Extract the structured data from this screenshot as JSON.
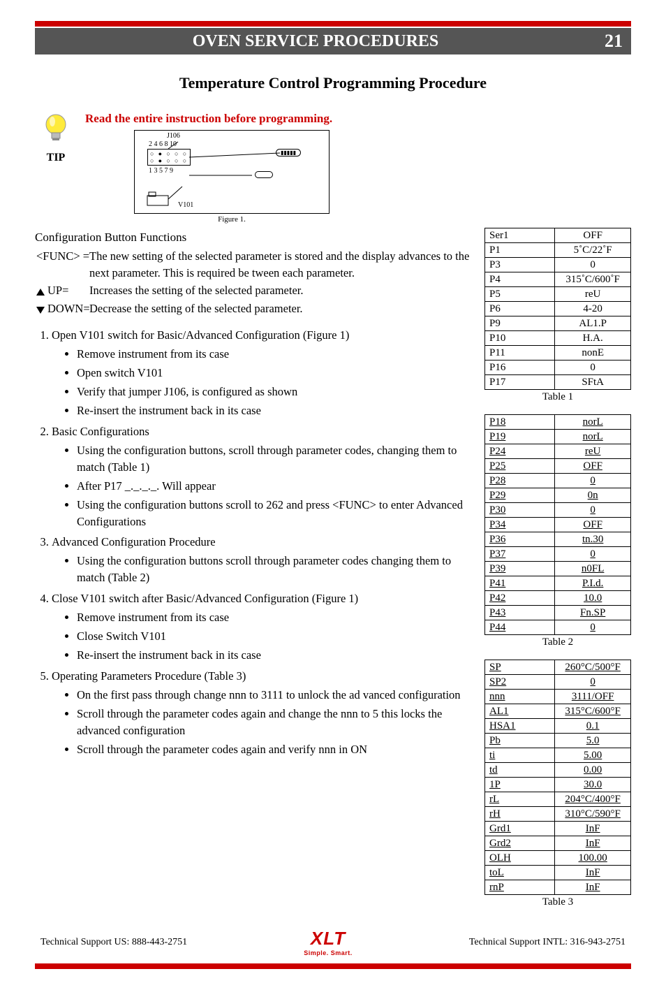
{
  "header": {
    "title": "OVEN SERVICE PROCEDURES",
    "page": "21"
  },
  "subtitle": "Temperature Control Programming Procedure",
  "tip": {
    "label": "TIP",
    "warning": "Read the entire instruction before programming."
  },
  "figure": {
    "j106": "J106",
    "top_nums": "2 4 6 8 10",
    "bot_nums": "1 3 5 7 9",
    "v101": "V101",
    "caption": "Figure 1."
  },
  "cfg": {
    "title": "Configuration Button Functions",
    "func_label": "<FUNC> =",
    "func_body": "The new setting of the selected parameter is stored and the display advances to the next parameter. This is required be tween each parameter.",
    "up_label": "UP=",
    "up_body": "Increases the setting of the selected parameter.",
    "down_label": "DOWN=",
    "down_body": "Decrease the setting of the selected parameter."
  },
  "steps": {
    "s1": "Open V101 switch for Basic/Advanced Configuration (Figure 1)",
    "s1a": "Remove instrument from its case",
    "s1b": "Open switch V101",
    "s1c": "Verify that jumper J106, is configured as shown",
    "s1d": "Re-insert the instrument back in its case",
    "s2": "Basic Configurations",
    "s2a": "Using the configuration buttons, scroll through parameter codes, changing them to match (Table 1)",
    "s2b": "After P17 _._._._. Will appear",
    "s2c": "Using the configuration buttons scroll to 262 and press <FUNC> to enter Advanced Configurations",
    "s3": "Advanced Configuration Procedure",
    "s3a": "Using the configuration buttons scroll through parameter codes changing them to match  (Table 2)",
    "s4": "Close V101 switch after Basic/Advanced Configuration (Figure 1)",
    "s4a": "Remove instrument from its case",
    "s4b": "Close Switch V101",
    "s4c": "Re-insert the instrument back in its case",
    "s5": "Operating Parameters Procedure (Table 3)",
    "s5a": "On the first pass through change nnn to 3111 to unlock the ad vanced configuration",
    "s5b": "Scroll through the parameter codes again and change the nnn to 5 this locks the advanced configuration",
    "s5c": "Scroll through the parameter codes again and verify nnn in ON"
  },
  "table1": {
    "caption": "Table 1",
    "rows": [
      [
        "Ser1",
        "OFF"
      ],
      [
        "P1",
        "5˚C/22˚F"
      ],
      [
        "P3",
        "0"
      ],
      [
        "P4",
        "315˚C/600˚F"
      ],
      [
        "P5",
        "reU"
      ],
      [
        "P6",
        "4-20"
      ],
      [
        "P9",
        "AL1.P"
      ],
      [
        "P10",
        "H.A."
      ],
      [
        "P11",
        "nonE"
      ],
      [
        "P16",
        "0"
      ],
      [
        "P17",
        "SFtA"
      ]
    ]
  },
  "table2": {
    "caption": "Table 2",
    "rows": [
      [
        "P18",
        "norL"
      ],
      [
        "P19",
        "norL"
      ],
      [
        "P24",
        "reU"
      ],
      [
        "P25",
        "OFF"
      ],
      [
        "P28",
        "0"
      ],
      [
        "P29",
        "0n"
      ],
      [
        "P30",
        "0"
      ],
      [
        "P34",
        "OFF"
      ],
      [
        "P36",
        "tn.30"
      ],
      [
        "P37",
        "0"
      ],
      [
        "P39",
        "n0FL"
      ],
      [
        "P41",
        "P.I.d."
      ],
      [
        "P42",
        "10.0"
      ],
      [
        "P43",
        "Fn.SP"
      ],
      [
        "P44",
        "0"
      ]
    ]
  },
  "table3": {
    "caption": "Table 3",
    "rows": [
      [
        "SP",
        "260°C/500°F"
      ],
      [
        "SP2",
        "0"
      ],
      [
        "nnn",
        "3111/OFF"
      ],
      [
        "AL1",
        "315°C/600°F"
      ],
      [
        "HSA1",
        "0.1"
      ],
      [
        "Pb",
        "5.0"
      ],
      [
        "ti",
        "5.00"
      ],
      [
        "td",
        "0.00"
      ],
      [
        "1P",
        "30.0"
      ],
      [
        "rL",
        "204°C/400°F"
      ],
      [
        "rH",
        "310°C/590°F"
      ],
      [
        "Grd1",
        "InF"
      ],
      [
        "Grd2",
        "InF"
      ],
      [
        "OLH",
        "100.00"
      ],
      [
        "toL",
        "InF"
      ],
      [
        "rnP",
        "InF"
      ]
    ]
  },
  "footer": {
    "us": "Technical Support  US:  888-443-2751",
    "intl": "Technical Support  INTL:  316-943-2751",
    "logo": "XLT",
    "tag": "Simple. Smart."
  },
  "colors": {
    "red": "#cc0000",
    "band": "#555555"
  }
}
